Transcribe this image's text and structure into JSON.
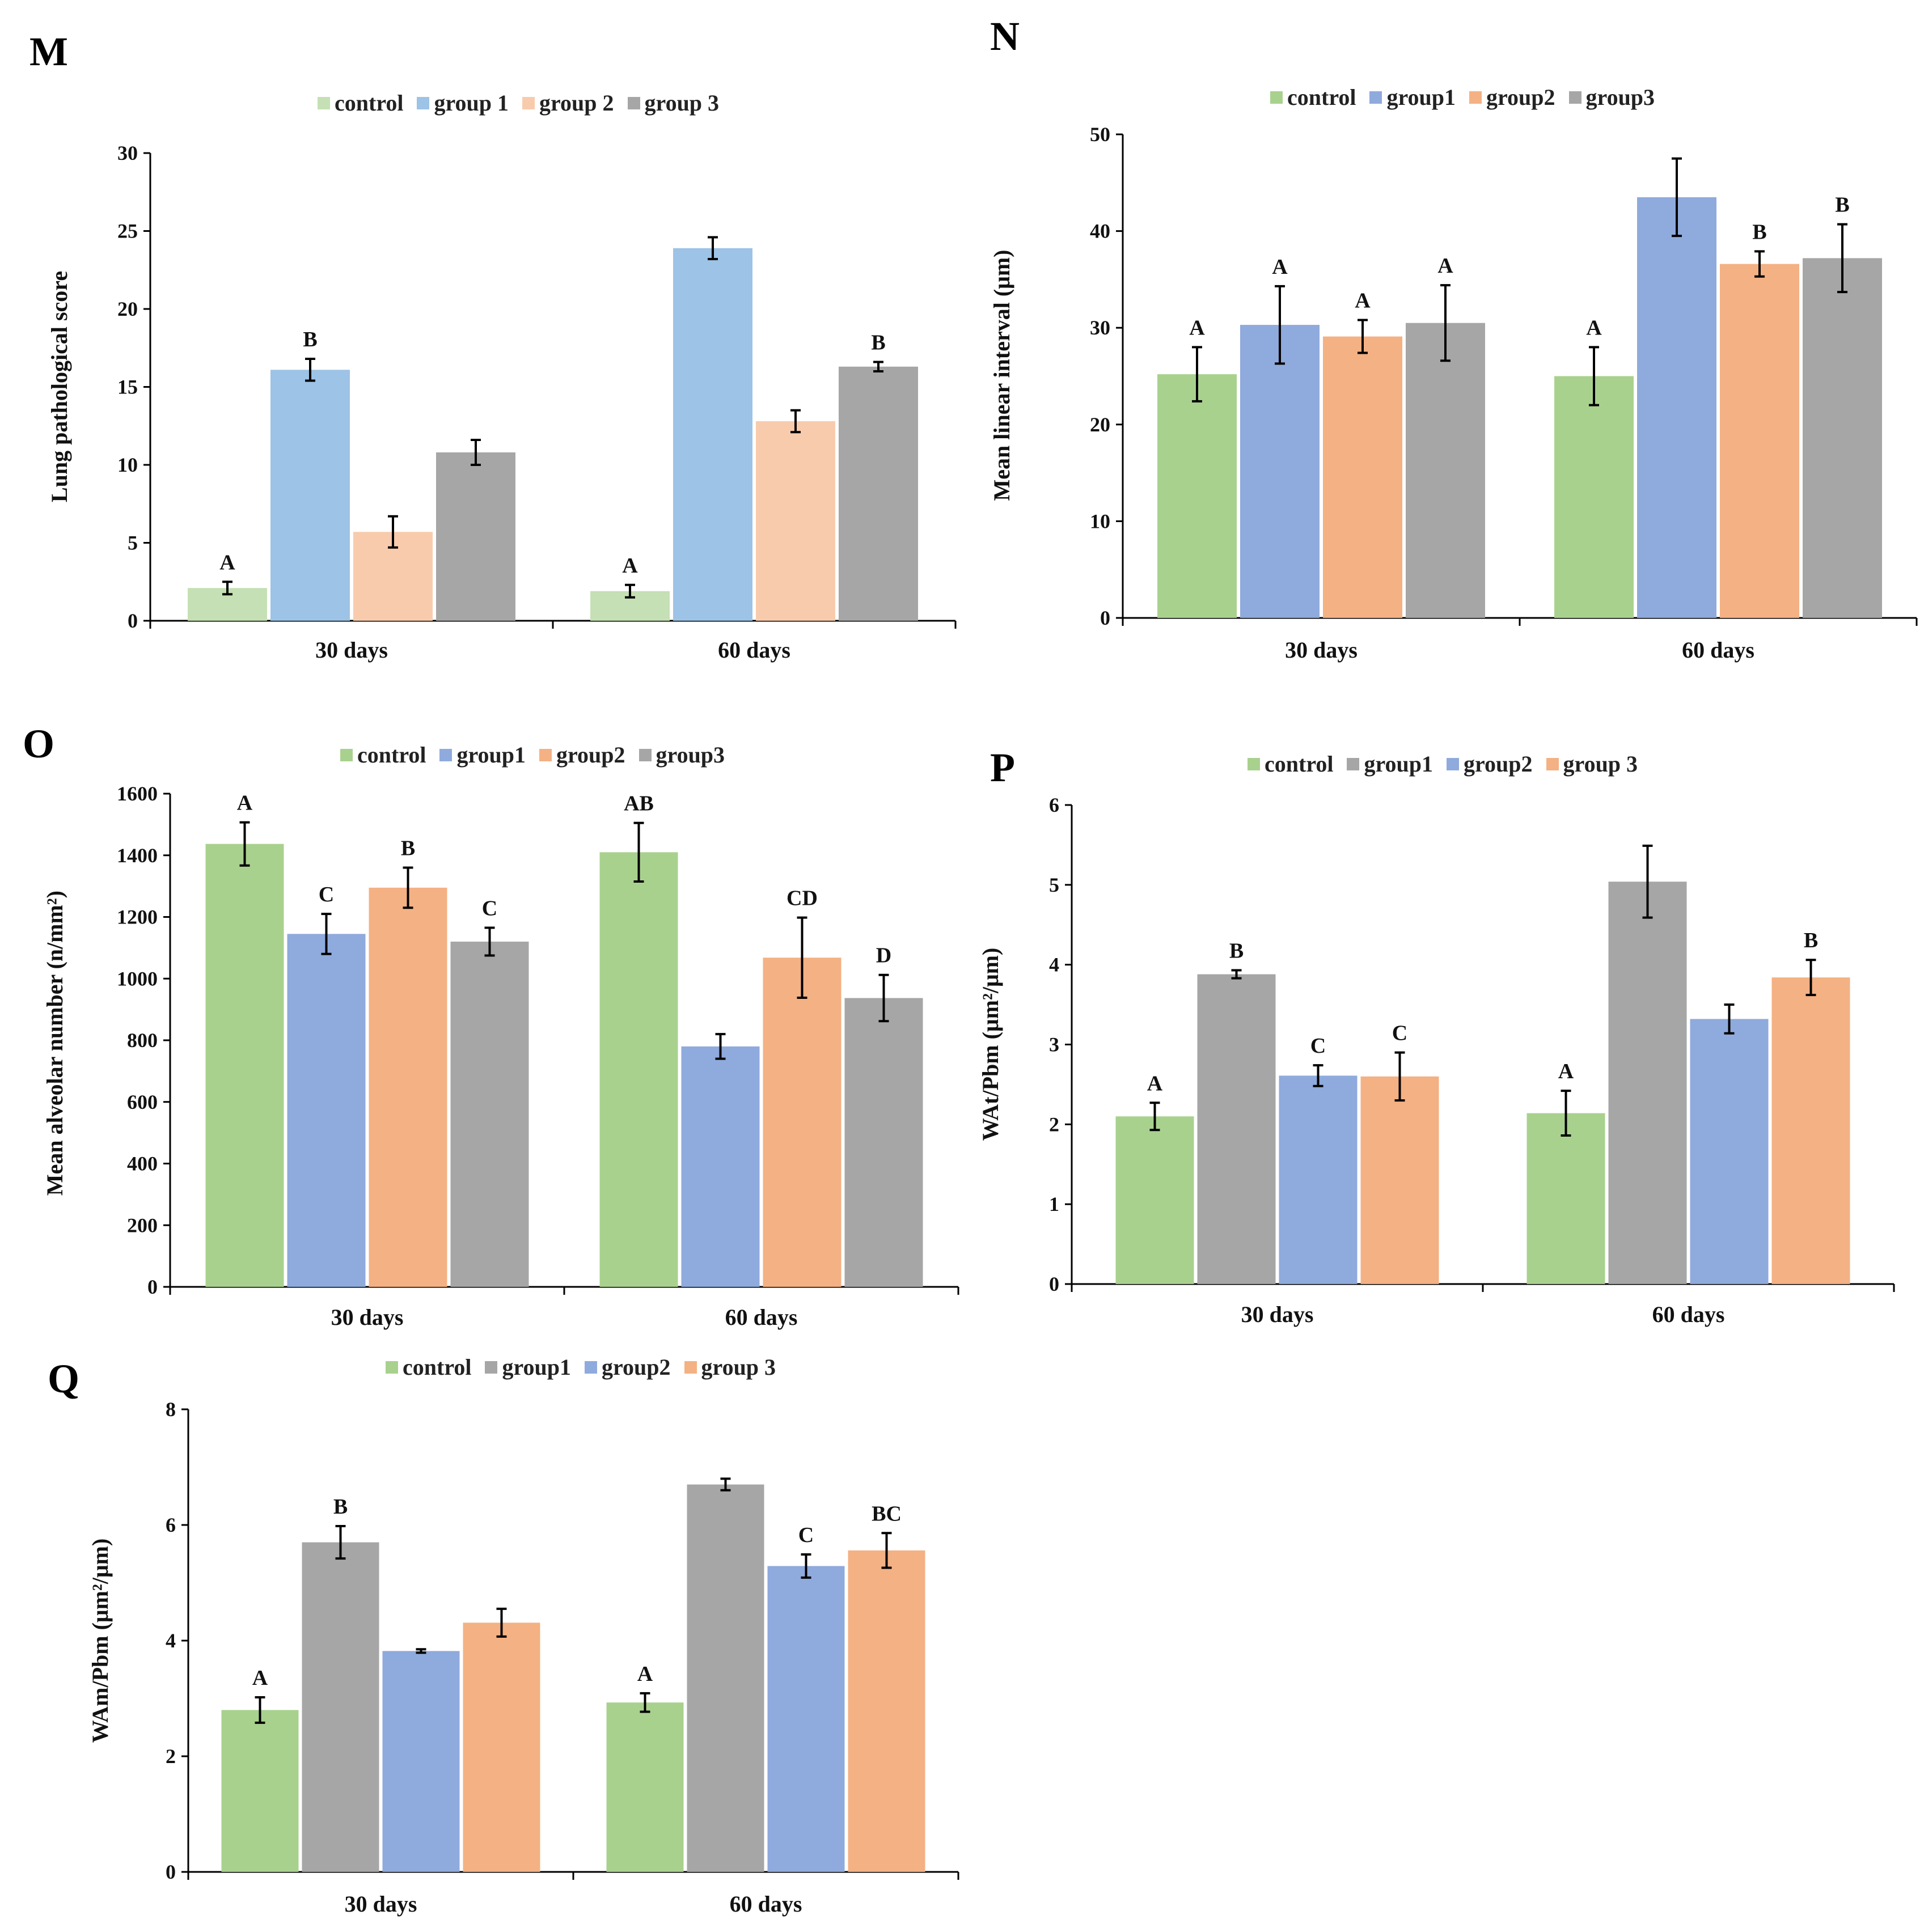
{
  "colors": {
    "green": "#a9d18e",
    "blue": "#8faadc",
    "orange": "#f4b183",
    "gray": "#a6a6a6",
    "light_green": "#c5e0b4",
    "light_orange": "#f8cbad"
  },
  "chart_data": [
    {
      "panel": "M",
      "type": "bar",
      "categories": [
        "30 days",
        "60 days"
      ],
      "ylabel": "Lung pathological score",
      "ylim": [
        0,
        30
      ],
      "yticks": [
        0,
        5,
        10,
        15,
        20,
        25,
        30
      ],
      "legend": [
        "control",
        "group 1",
        "group 2",
        "group 3"
      ],
      "colors": [
        "#c5e0b4",
        "#9dc3e6",
        "#f8cbad",
        "#a6a6a6"
      ],
      "series": [
        {
          "name": "control",
          "values": [
            2.1,
            1.9
          ],
          "errors": [
            0.4,
            0.4
          ],
          "letters": [
            "A",
            "A"
          ]
        },
        {
          "name": "group 1",
          "values": [
            16.1,
            23.9
          ],
          "errors": [
            0.7,
            0.7
          ],
          "letters": [
            "B",
            ""
          ]
        },
        {
          "name": "group 2",
          "values": [
            5.7,
            12.8
          ],
          "errors": [
            1.0,
            0.7
          ],
          "letters": [
            "",
            ""
          ]
        },
        {
          "name": "group 3",
          "values": [
            10.8,
            16.3
          ],
          "errors": [
            0.8,
            0.3
          ],
          "letters": [
            "",
            "B"
          ]
        }
      ]
    },
    {
      "panel": "N",
      "type": "bar",
      "categories": [
        "30 days",
        "60 days"
      ],
      "ylabel": "Mean linear interval (μm)",
      "ylim": [
        0,
        50
      ],
      "yticks": [
        0,
        10,
        20,
        30,
        40,
        50
      ],
      "legend": [
        "control",
        "group1",
        "group2",
        "group3"
      ],
      "colors": [
        "#a9d18e",
        "#8faadc",
        "#f4b183",
        "#a6a6a6"
      ],
      "series": [
        {
          "name": "control",
          "values": [
            25.2,
            25.0
          ],
          "errors": [
            2.8,
            3.0
          ],
          "letters": [
            "A",
            "A"
          ]
        },
        {
          "name": "group1",
          "values": [
            30.3,
            43.5
          ],
          "errors": [
            4.0,
            4.0
          ],
          "letters": [
            "A",
            ""
          ]
        },
        {
          "name": "group2",
          "values": [
            29.1,
            36.6
          ],
          "errors": [
            1.7,
            1.3
          ],
          "letters": [
            "A",
            "B"
          ]
        },
        {
          "name": "group3",
          "values": [
            30.5,
            37.2
          ],
          "errors": [
            3.9,
            3.5
          ],
          "letters": [
            "A",
            "B"
          ]
        }
      ]
    },
    {
      "panel": "O",
      "type": "bar",
      "categories": [
        "30 days",
        "60 days"
      ],
      "ylabel": "Mean alveolar number (n/mm²)",
      "ylim": [
        0,
        1600
      ],
      "yticks": [
        0,
        200,
        400,
        600,
        800,
        1000,
        1200,
        1400,
        1600
      ],
      "legend": [
        "control",
        "group1",
        "group2",
        "group3"
      ],
      "colors": [
        "#a9d18e",
        "#8faadc",
        "#f4b183",
        "#a6a6a6"
      ],
      "series": [
        {
          "name": "control",
          "values": [
            1437,
            1410
          ],
          "errors": [
            70,
            95
          ],
          "letters": [
            "A",
            "AB"
          ]
        },
        {
          "name": "group1",
          "values": [
            1145,
            780
          ],
          "errors": [
            65,
            40
          ],
          "letters": [
            "C",
            ""
          ]
        },
        {
          "name": "group2",
          "values": [
            1295,
            1068
          ],
          "errors": [
            65,
            130
          ],
          "letters": [
            "B",
            "CD"
          ]
        },
        {
          "name": "group3",
          "values": [
            1120,
            937
          ],
          "errors": [
            45,
            75
          ],
          "letters": [
            "C",
            "D"
          ]
        }
      ]
    },
    {
      "panel": "P",
      "type": "bar",
      "categories": [
        "30 days",
        "60 days"
      ],
      "ylabel": "WAt/Pbm (μm²/μm)",
      "ylim": [
        0,
        6
      ],
      "yticks": [
        0,
        1,
        2,
        3,
        4,
        5,
        6
      ],
      "legend": [
        "control",
        "group1",
        "group2",
        "group 3"
      ],
      "colors": [
        "#a9d18e",
        "#a6a6a6",
        "#8faadc",
        "#f4b183"
      ],
      "series": [
        {
          "name": "control",
          "values": [
            2.1,
            2.14
          ],
          "errors": [
            0.17,
            0.28
          ],
          "letters": [
            "A",
            "A"
          ]
        },
        {
          "name": "group1",
          "values": [
            3.88,
            5.04
          ],
          "errors": [
            0.05,
            0.45
          ],
          "letters": [
            "B",
            ""
          ]
        },
        {
          "name": "group2",
          "values": [
            2.61,
            3.32
          ],
          "errors": [
            0.13,
            0.18
          ],
          "letters": [
            "C",
            ""
          ]
        },
        {
          "name": "group 3",
          "values": [
            2.6,
            3.84
          ],
          "errors": [
            0.3,
            0.22
          ],
          "letters": [
            "C",
            "B"
          ]
        }
      ]
    },
    {
      "panel": "Q",
      "type": "bar",
      "categories": [
        "30 days",
        "60 days"
      ],
      "ylabel": "WAm/Pbm (μm²/μm)",
      "ylim": [
        0,
        8
      ],
      "yticks": [
        0,
        2,
        4,
        6,
        8
      ],
      "legend": [
        "control",
        "group1",
        "group2",
        "group 3"
      ],
      "colors": [
        "#a9d18e",
        "#a6a6a6",
        "#8faadc",
        "#f4b183"
      ],
      "series": [
        {
          "name": "control",
          "values": [
            2.8,
            2.93
          ],
          "errors": [
            0.22,
            0.16
          ],
          "letters": [
            "A",
            "A"
          ]
        },
        {
          "name": "group1",
          "values": [
            5.7,
            6.7
          ],
          "errors": [
            0.28,
            0.1
          ],
          "letters": [
            "B",
            ""
          ]
        },
        {
          "name": "group2",
          "values": [
            3.82,
            5.29
          ],
          "errors": [
            0.03,
            0.2
          ],
          "letters": [
            "",
            "C"
          ]
        },
        {
          "name": "group 3",
          "values": [
            4.31,
            5.56
          ],
          "errors": [
            0.24,
            0.3
          ],
          "letters": [
            "",
            "BC"
          ]
        }
      ]
    }
  ]
}
